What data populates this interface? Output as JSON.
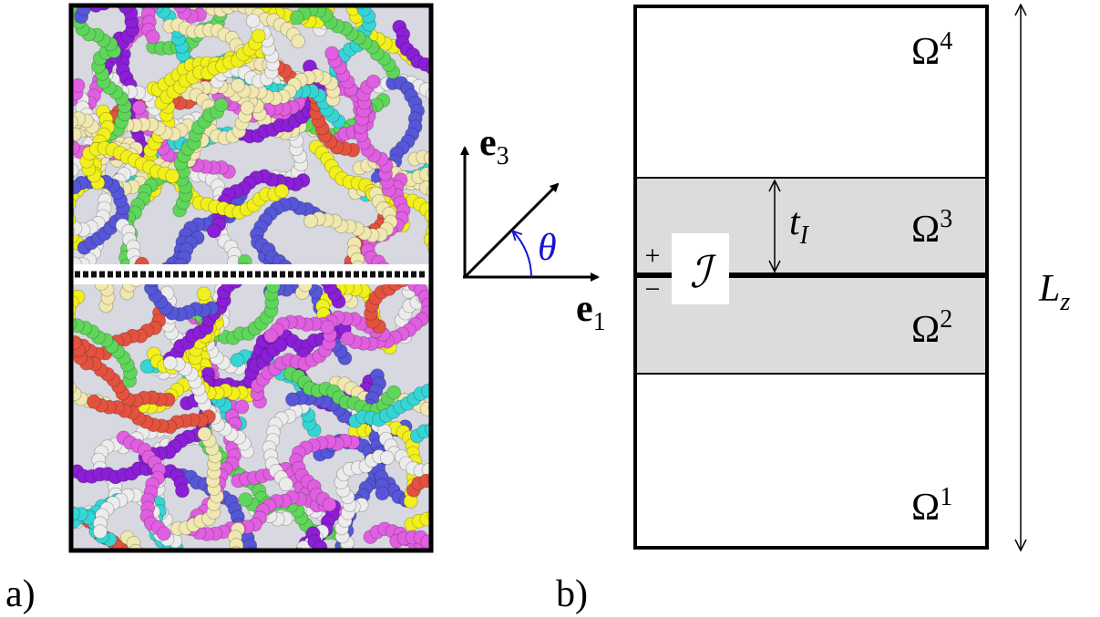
{
  "panel_a": {
    "label": "a)",
    "axes": {
      "vertical": {
        "base": "e",
        "sub": "3"
      },
      "horizontal": {
        "base": "e",
        "sub": "1"
      },
      "angle": "θ"
    }
  },
  "panel_b": {
    "label": "b)",
    "regions": [
      {
        "symbol": "Ω",
        "index": "4"
      },
      {
        "symbol": "Ω",
        "index": "3"
      },
      {
        "symbol": "Ω",
        "index": "2"
      },
      {
        "symbol": "Ω",
        "index": "1"
      }
    ],
    "thickness": {
      "base": "t",
      "sub": "I"
    },
    "interface": "ℐ",
    "plus": "+",
    "minus": "−",
    "height": {
      "base": "L",
      "sub": "z"
    }
  }
}
